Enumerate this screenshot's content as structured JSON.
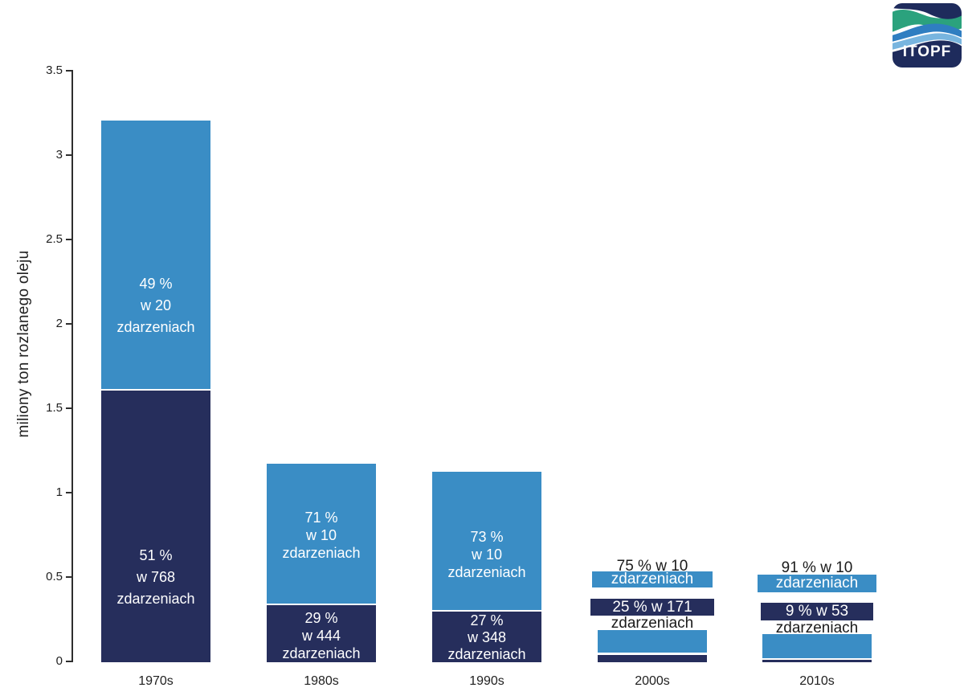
{
  "logo": {
    "text": "ITOPF",
    "navy": "#1e2b5c",
    "green": "#2ba27d",
    "blue": "#2f7ec1",
    "light_blue": "#78b5df"
  },
  "colors": {
    "segment_blue": "#3a8dc5",
    "segment_navy": "#262e5c",
    "axis": "#2e2e2e",
    "text_dark": "#1f1f1f",
    "text_light": "#ffffff",
    "background": "#ffffff"
  },
  "chart_data": {
    "type": "bar",
    "stacked": true,
    "title": "",
    "xlabel": "",
    "ylabel": "miliony ton rozlanego oleju",
    "ylim": [
      0,
      3.5
    ],
    "ytick_labels": [
      "3.5",
      "3",
      "2.5",
      "2",
      "1.5",
      "1",
      "0.5",
      "0"
    ],
    "grid": false,
    "legend": "none",
    "categories": [
      "1970s",
      "1980s",
      "1990s",
      "2000s",
      "2010s"
    ],
    "series": [
      {
        "name": "top-blue-segment",
        "color": "#3a8dc5",
        "values": [
          1.59,
          0.83,
          0.82,
          0.135,
          0.145
        ]
      },
      {
        "name": "bottom-navy-segment",
        "color": "#262e5c",
        "values": [
          1.61,
          0.34,
          0.3,
          0.045,
          0.012
        ]
      }
    ],
    "bars": [
      {
        "category": "1970s",
        "label_mode": "inside",
        "top": {
          "lines": [
            "49 %",
            "w 20",
            "zdarzeniach"
          ],
          "value": 1.59
        },
        "bottom": {
          "lines": [
            "51 %",
            "w 768",
            "zdarzeniach"
          ],
          "value": 1.61
        }
      },
      {
        "category": "1980s",
        "label_mode": "inside",
        "top": {
          "lines": [
            "71 %",
            "w 10",
            "zdarzeniach"
          ],
          "value": 0.83
        },
        "bottom": {
          "lines": [
            "29 %",
            "w 444",
            "zdarzeniach"
          ],
          "value": 0.34
        }
      },
      {
        "category": "1990s",
        "label_mode": "inside",
        "top": {
          "lines": [
            "73 %",
            "w 10",
            "zdarzeniach"
          ],
          "value": 0.82
        },
        "bottom": {
          "lines": [
            "27 %",
            "w 348",
            "zdarzeniach"
          ],
          "value": 0.3
        }
      },
      {
        "category": "2000s",
        "label_mode": "callout",
        "top": {
          "percent_line": "75 % w 10",
          "unit_line": "zdarzeniach",
          "value": 0.135
        },
        "bottom": {
          "percent_line": "25 % w 171",
          "unit_line": "zdarzeniach",
          "value": 0.045
        }
      },
      {
        "category": "2010s",
        "label_mode": "callout",
        "top": {
          "percent_line": "91 % w 10",
          "unit_line": "zdarzeniach",
          "value": 0.145
        },
        "bottom": {
          "percent_line": "9 % w 53",
          "unit_line": "zdarzeniach",
          "value": 0.012
        }
      }
    ]
  }
}
